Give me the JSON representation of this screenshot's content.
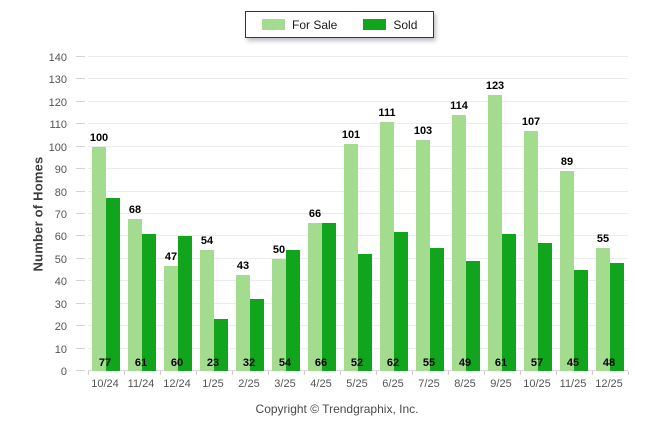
{
  "chart_data": {
    "type": "bar",
    "title": "",
    "categories": [
      "10/24",
      "11/24",
      "12/24",
      "1/25",
      "2/25",
      "3/25",
      "4/25",
      "5/25",
      "6/25",
      "7/25",
      "8/25",
      "9/25",
      "10/25",
      "11/25",
      "12/25"
    ],
    "series": [
      {
        "name": "For Sale",
        "color": "#A3DC8E",
        "values": [
          100,
          68,
          47,
          54,
          43,
          50,
          66,
          101,
          111,
          103,
          114,
          123,
          107,
          89,
          55
        ],
        "label_position": "above-bar"
      },
      {
        "name": "Sold",
        "color": "#11A41D",
        "values": [
          77,
          61,
          60,
          23,
          32,
          54,
          66,
          52,
          62,
          55,
          49,
          61,
          57,
          45,
          48
        ],
        "label_position": "bottom-of-group"
      }
    ],
    "xlabel": "",
    "ylabel": "Number of Homes",
    "ylim": [
      0,
      140
    ],
    "ytick_step": 10,
    "grid": true,
    "legend_position": "top-center"
  },
  "legend": {
    "items": [
      {
        "label": "For Sale",
        "color": "#A3DC8E"
      },
      {
        "label": "Sold",
        "color": "#11A41D"
      }
    ]
  },
  "footer": {
    "copyright": "Copyright © Trendgraphix, Inc."
  },
  "colors": {
    "for_sale": "#A3DC8E",
    "sold": "#11A41D",
    "gridline": "#EBEBEB",
    "baseline": "#D8D8D8",
    "axis_text": "#555555",
    "data_label": "#000000",
    "legend_border": "#1C3A5E",
    "background": "#FFFFFF"
  }
}
